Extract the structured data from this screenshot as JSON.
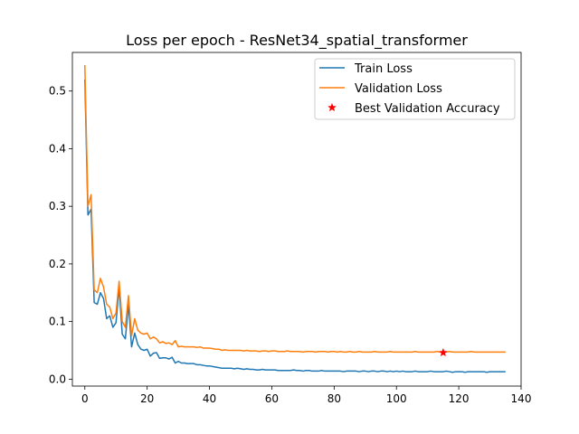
{
  "chart_data": {
    "type": "line",
    "title": "Loss per epoch - ResNet34_spatial_transformer",
    "xlabel": "",
    "ylabel": "",
    "xlim": [
      -4,
      140
    ],
    "ylim": [
      -0.012,
      0.567
    ],
    "xticks": [
      0,
      20,
      40,
      60,
      80,
      100,
      120,
      140
    ],
    "yticks": [
      0.0,
      0.1,
      0.2,
      0.3,
      0.4,
      0.5
    ],
    "legend": "top-right",
    "grid": false,
    "series": [
      {
        "name": "Train Loss",
        "color": "#1f77b4",
        "x": [
          0,
          1,
          2,
          3,
          4,
          5,
          6,
          7,
          8,
          9,
          10,
          11,
          12,
          13,
          14,
          15,
          16,
          17,
          18,
          19,
          20,
          21,
          22,
          23,
          24,
          25,
          26,
          27,
          28,
          29,
          30,
          31,
          32,
          33,
          34,
          35,
          36,
          37,
          38,
          39,
          40,
          41,
          42,
          43,
          44,
          45,
          46,
          47,
          48,
          49,
          50,
          51,
          52,
          53,
          54,
          55,
          56,
          57,
          58,
          59,
          60,
          61,
          62,
          63,
          64,
          65,
          66,
          67,
          68,
          69,
          70,
          71,
          72,
          73,
          74,
          75,
          76,
          77,
          78,
          79,
          80,
          81,
          82,
          83,
          84,
          85,
          86,
          87,
          88,
          89,
          90,
          91,
          92,
          93,
          94,
          95,
          96,
          97,
          98,
          99,
          100,
          101,
          102,
          103,
          104,
          105,
          106,
          107,
          108,
          109,
          110,
          111,
          112,
          113,
          114,
          115,
          116,
          117,
          118,
          119,
          120,
          121,
          122,
          123,
          124,
          125,
          126,
          127,
          128,
          129,
          130,
          131,
          132,
          133,
          134,
          135
        ],
        "y": [
          0.52,
          0.285,
          0.295,
          0.133,
          0.13,
          0.15,
          0.14,
          0.105,
          0.11,
          0.09,
          0.098,
          0.16,
          0.078,
          0.07,
          0.13,
          0.056,
          0.08,
          0.06,
          0.052,
          0.05,
          0.052,
          0.04,
          0.045,
          0.046,
          0.036,
          0.037,
          0.037,
          0.035,
          0.038,
          0.028,
          0.031,
          0.028,
          0.028,
          0.027,
          0.027,
          0.027,
          0.025,
          0.025,
          0.024,
          0.023,
          0.023,
          0.022,
          0.021,
          0.02,
          0.019,
          0.019,
          0.019,
          0.019,
          0.018,
          0.019,
          0.018,
          0.017,
          0.018,
          0.017,
          0.017,
          0.016,
          0.016,
          0.017,
          0.016,
          0.016,
          0.016,
          0.016,
          0.015,
          0.015,
          0.015,
          0.015,
          0.015,
          0.016,
          0.015,
          0.015,
          0.014,
          0.015,
          0.015,
          0.014,
          0.014,
          0.014,
          0.015,
          0.014,
          0.014,
          0.014,
          0.014,
          0.014,
          0.014,
          0.013,
          0.014,
          0.014,
          0.014,
          0.014,
          0.013,
          0.014,
          0.014,
          0.013,
          0.014,
          0.014,
          0.013,
          0.014,
          0.014,
          0.013,
          0.014,
          0.013,
          0.014,
          0.013,
          0.014,
          0.013,
          0.013,
          0.013,
          0.014,
          0.013,
          0.013,
          0.013,
          0.013,
          0.014,
          0.013,
          0.013,
          0.013,
          0.013,
          0.014,
          0.013,
          0.012,
          0.013,
          0.013,
          0.013,
          0.012,
          0.013,
          0.013,
          0.013,
          0.013,
          0.013,
          0.013,
          0.012,
          0.013,
          0.013,
          0.013,
          0.013,
          0.013,
          0.013
        ]
      },
      {
        "name": "Validation Loss",
        "color": "#ff7f0e",
        "x": [
          0,
          1,
          2,
          3,
          4,
          5,
          6,
          7,
          8,
          9,
          10,
          11,
          12,
          13,
          14,
          15,
          16,
          17,
          18,
          19,
          20,
          21,
          22,
          23,
          24,
          25,
          26,
          27,
          28,
          29,
          30,
          31,
          32,
          33,
          34,
          35,
          36,
          37,
          38,
          39,
          40,
          41,
          42,
          43,
          44,
          45,
          46,
          47,
          48,
          49,
          50,
          51,
          52,
          53,
          54,
          55,
          56,
          57,
          58,
          59,
          60,
          61,
          62,
          63,
          64,
          65,
          66,
          67,
          68,
          69,
          70,
          71,
          72,
          73,
          74,
          75,
          76,
          77,
          78,
          79,
          80,
          81,
          82,
          83,
          84,
          85,
          86,
          87,
          88,
          89,
          90,
          91,
          92,
          93,
          94,
          95,
          96,
          97,
          98,
          99,
          100,
          101,
          102,
          103,
          104,
          105,
          106,
          107,
          108,
          109,
          110,
          111,
          112,
          113,
          114,
          115,
          116,
          117,
          118,
          119,
          120,
          121,
          122,
          123,
          124,
          125,
          126,
          127,
          128,
          129,
          130,
          131,
          132,
          133,
          134,
          135
        ],
        "y": [
          0.545,
          0.3,
          0.32,
          0.155,
          0.15,
          0.175,
          0.16,
          0.13,
          0.125,
          0.105,
          0.115,
          0.17,
          0.1,
          0.09,
          0.145,
          0.075,
          0.105,
          0.085,
          0.08,
          0.078,
          0.08,
          0.07,
          0.073,
          0.07,
          0.063,
          0.065,
          0.062,
          0.063,
          0.06,
          0.067,
          0.056,
          0.057,
          0.056,
          0.056,
          0.056,
          0.056,
          0.055,
          0.056,
          0.054,
          0.054,
          0.054,
          0.053,
          0.052,
          0.052,
          0.05,
          0.051,
          0.05,
          0.05,
          0.05,
          0.05,
          0.05,
          0.049,
          0.05,
          0.049,
          0.049,
          0.049,
          0.048,
          0.049,
          0.049,
          0.048,
          0.049,
          0.049,
          0.048,
          0.048,
          0.048,
          0.049,
          0.048,
          0.048,
          0.048,
          0.048,
          0.047,
          0.048,
          0.048,
          0.048,
          0.047,
          0.048,
          0.048,
          0.048,
          0.047,
          0.048,
          0.048,
          0.047,
          0.048,
          0.047,
          0.047,
          0.048,
          0.047,
          0.047,
          0.048,
          0.047,
          0.047,
          0.047,
          0.047,
          0.048,
          0.047,
          0.047,
          0.047,
          0.047,
          0.048,
          0.047,
          0.047,
          0.047,
          0.047,
          0.047,
          0.047,
          0.047,
          0.048,
          0.047,
          0.047,
          0.047,
          0.047,
          0.047,
          0.047,
          0.048,
          0.047,
          0.047,
          0.047,
          0.048,
          0.047,
          0.047,
          0.047,
          0.047,
          0.047,
          0.047,
          0.048,
          0.047,
          0.047,
          0.047,
          0.047,
          0.047,
          0.047,
          0.047,
          0.047,
          0.047,
          0.047,
          0.047
        ]
      },
      {
        "name": "Best Validation Accuracy",
        "color": "#ff0000",
        "marker": "star",
        "x": [
          115
        ],
        "y": [
          0.046
        ]
      }
    ]
  }
}
